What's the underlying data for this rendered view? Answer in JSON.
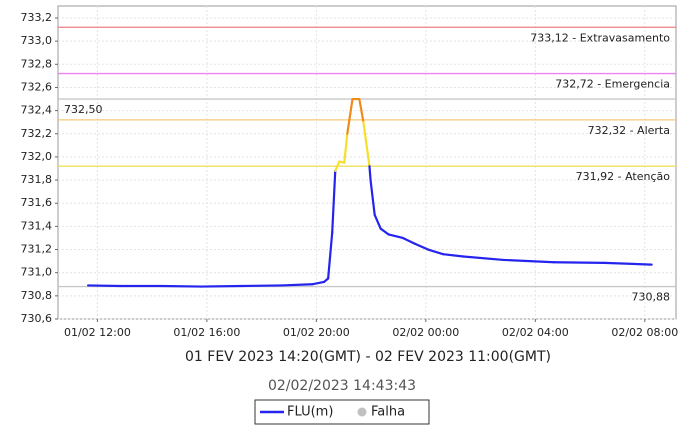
{
  "chart_data": {
    "type": "line",
    "subtitle": "01 FEV 2023 14:20(GMT) - 02 FEV 2023 11:00(GMT)",
    "timestamp": "02/02/2023 14:43:43",
    "xlim": [
      10.56,
      33.14
    ],
    "xticks": [
      {
        "value": 12,
        "label": "01/02 12:00"
      },
      {
        "value": 16,
        "label": "01/02 16:00"
      },
      {
        "value": 20,
        "label": "01/02 20:00"
      },
      {
        "value": 24,
        "label": "02/02 00:00"
      },
      {
        "value": 28,
        "label": "02/02 04:00"
      },
      {
        "value": 32,
        "label": "02/02 08:00"
      }
    ],
    "ylim": [
      730.6,
      733.2
    ],
    "yticks": [
      {
        "value": 730.6,
        "label": "730,6"
      },
      {
        "value": 730.8,
        "label": "730,8"
      },
      {
        "value": 731.0,
        "label": "731,0"
      },
      {
        "value": 731.2,
        "label": "731,2"
      },
      {
        "value": 731.4,
        "label": "731,4"
      },
      {
        "value": 731.6,
        "label": "731,6"
      },
      {
        "value": 731.8,
        "label": "731,8"
      },
      {
        "value": 732.0,
        "label": "732,0"
      },
      {
        "value": 732.2,
        "label": "732,2"
      },
      {
        "value": 732.4,
        "label": "732,4"
      },
      {
        "value": 732.6,
        "label": "732,6"
      },
      {
        "value": 732.8,
        "label": "732,8"
      },
      {
        "value": 733.0,
        "label": "733,0"
      },
      {
        "value": 733.2,
        "label": "733,2"
      }
    ],
    "grid": true,
    "thresholds": [
      {
        "value": 733.12,
        "label": "733,12 - Extravasamento",
        "color": "#f08080",
        "side": "right"
      },
      {
        "value": 732.72,
        "label": "732,72 - Emergencia",
        "color": "#ee82ee",
        "side": "right"
      },
      {
        "value": 732.5,
        "label": "732,50",
        "color": "#c8c8c8",
        "side": "left"
      },
      {
        "value": 732.32,
        "label": "732,32 - Alerta",
        "color": "#f5c87a",
        "side": "right"
      },
      {
        "value": 731.92,
        "label": "731,92 - Atenção",
        "color": "#ece060",
        "side": "right"
      },
      {
        "value": 730.88,
        "label": "730,88",
        "color": "#c8c8c8",
        "side": "right"
      }
    ],
    "series": [
      {
        "name": "FLU(m)",
        "color": "#2424ee",
        "x": [
          11.66,
          12.84,
          14.32,
          15.79,
          17.26,
          18.74,
          19.84,
          20.28,
          20.43,
          20.58,
          20.69,
          20.84,
          21.02,
          21.13,
          21.32,
          21.57,
          21.72,
          21.94,
          21.98,
          22.13,
          22.35,
          22.64,
          23.16,
          23.6,
          24.08,
          24.63,
          25.37,
          26.84,
          28.68,
          30.52,
          32.25
        ],
        "values": [
          730.89,
          730.885,
          730.885,
          730.88,
          730.885,
          730.89,
          730.9,
          730.92,
          730.95,
          731.35,
          731.88,
          731.96,
          731.95,
          732.2,
          732.5,
          732.5,
          732.3,
          731.92,
          731.8,
          731.5,
          731.38,
          731.33,
          731.3,
          731.25,
          731.2,
          731.16,
          731.14,
          731.11,
          731.09,
          731.085,
          731.07
        ]
      }
    ],
    "segment_colors": {
      "above_alert": "#f08a1c",
      "above_attention": "#f5df2a"
    },
    "failure_legend": {
      "name": "Falha",
      "color": "#c0c0c0"
    }
  }
}
